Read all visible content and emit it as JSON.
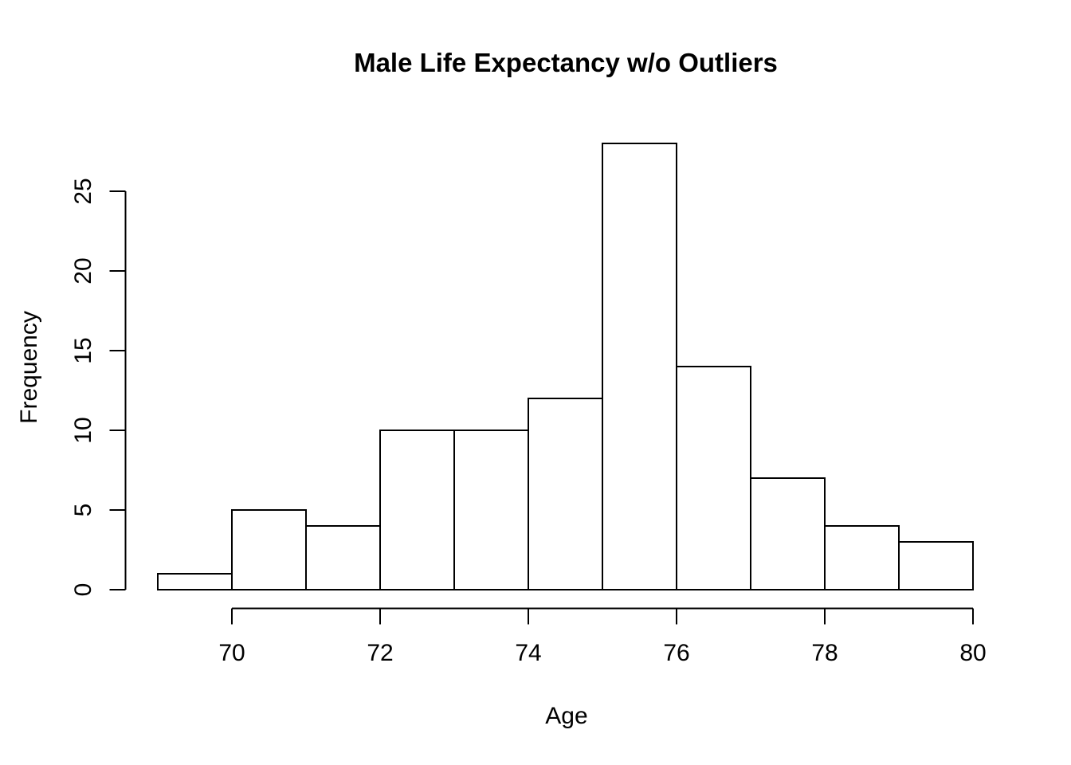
{
  "chart_data": {
    "type": "bar",
    "subtype": "histogram",
    "title": "Male Life Expectancy w/o Outliers",
    "xlabel": "Age",
    "ylabel": "Frequency",
    "breaks": [
      69,
      70,
      71,
      72,
      73,
      74,
      75,
      76,
      77,
      78,
      79,
      80
    ],
    "counts": [
      1,
      5,
      4,
      10,
      10,
      12,
      28,
      14,
      7,
      4,
      3
    ],
    "bins": [
      {
        "range": [
          69,
          70
        ],
        "count": 1
      },
      {
        "range": [
          70,
          71
        ],
        "count": 5
      },
      {
        "range": [
          71,
          72
        ],
        "count": 4
      },
      {
        "range": [
          72,
          73
        ],
        "count": 10
      },
      {
        "range": [
          73,
          74
        ],
        "count": 10
      },
      {
        "range": [
          74,
          75
        ],
        "count": 12
      },
      {
        "range": [
          75,
          76
        ],
        "count": 28
      },
      {
        "range": [
          76,
          77
        ],
        "count": 14
      },
      {
        "range": [
          77,
          78
        ],
        "count": 7
      },
      {
        "range": [
          78,
          79
        ],
        "count": 4
      },
      {
        "range": [
          79,
          80
        ],
        "count": 3
      }
    ],
    "x_ticks": [
      70,
      72,
      74,
      76,
      78,
      80
    ],
    "y_ticks": [
      0,
      5,
      10,
      15,
      20,
      25
    ],
    "xlim": [
      69,
      80
    ],
    "ylim": [
      0,
      28
    ],
    "grid": "off",
    "legend": "none",
    "colors": {
      "background": "#ffffff",
      "bar_fill": "#ffffff",
      "bar_stroke": "#000000",
      "axis": "#000000",
      "text": "#000000"
    }
  }
}
